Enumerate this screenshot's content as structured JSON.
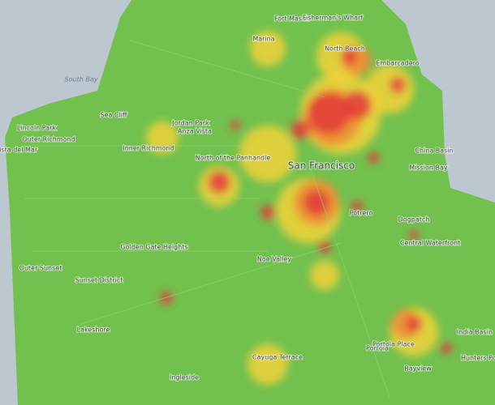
{
  "map": {
    "labels": [
      {
        "text": "Fort Mason"
      },
      {
        "text": "Fisherman's Wharf"
      },
      {
        "text": "Marina"
      },
      {
        "text": "North Beach"
      },
      {
        "text": "Embarcadero"
      },
      {
        "text": "South Bay"
      },
      {
        "text": "Sea Cliff"
      },
      {
        "text": "Lincoln Park"
      },
      {
        "text": "Outer Richmond"
      },
      {
        "text": "Vista del Mar"
      },
      {
        "text": "Inner Richmond"
      },
      {
        "text": "Jordan Park"
      },
      {
        "text": "Anza Vista"
      },
      {
        "text": "North of the Panhandle"
      },
      {
        "text": "San Francisco"
      },
      {
        "text": "China Basin"
      },
      {
        "text": "Mission Bay"
      },
      {
        "text": "Potrero"
      },
      {
        "text": "Dogpatch"
      },
      {
        "text": "Central Waterfront"
      },
      {
        "text": "Golden Gate Heights"
      },
      {
        "text": "Outer Sunset"
      },
      {
        "text": "Sunset District"
      },
      {
        "text": "Noe Valley"
      },
      {
        "text": "India Basin"
      },
      {
        "text": "Hunters Point"
      },
      {
        "text": "Portola"
      },
      {
        "text": "Bayview"
      },
      {
        "text": "Lakeshore"
      },
      {
        "text": "Ingleside"
      },
      {
        "text": "Cayuga Terrace"
      },
      {
        "text": "Portola Place"
      }
    ]
  }
}
